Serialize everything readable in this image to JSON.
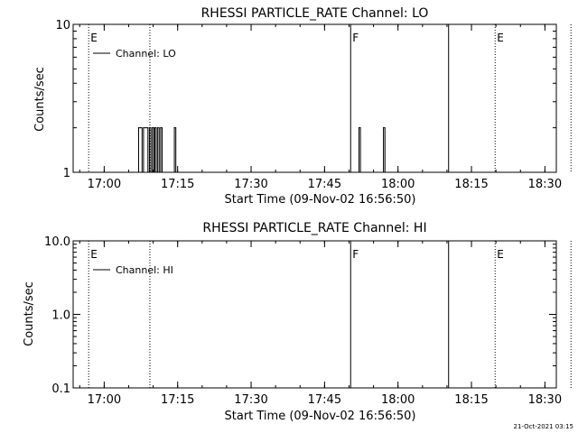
{
  "chart_data": [
    {
      "type": "line",
      "title": "RHESSI PARTICLE_RATE Channel: LO",
      "xlabel": "Start Time (09-Nov-02 16:56:50)",
      "ylabel": "Counts/sec",
      "yscale": "log",
      "ylim": [
        1,
        10
      ],
      "xlim_min": [
        -3.17,
        95.5
      ],
      "xticks": [
        {
          "v": 3.17,
          "label": "17:00"
        },
        {
          "v": 18.17,
          "label": "17:15"
        },
        {
          "v": 33.17,
          "label": "17:30"
        },
        {
          "v": 48.17,
          "label": "17:45"
        },
        {
          "v": 63.17,
          "label": "18:00"
        },
        {
          "v": 78.17,
          "label": "18:15"
        },
        {
          "v": 93.17,
          "label": "18:30"
        }
      ],
      "yticks": [
        {
          "v": 1,
          "label": "1"
        },
        {
          "v": 10,
          "label": "10"
        }
      ],
      "legend": {
        "label": "Channel: LO",
        "placement": "top-left"
      },
      "markers": [
        {
          "x": 0,
          "style": "dotted",
          "label": "E"
        },
        {
          "x": 12.5,
          "style": "dotted",
          "label": ""
        },
        {
          "x": 53.5,
          "style": "solid",
          "label": "F"
        },
        {
          "x": 73.5,
          "style": "solid",
          "label": ""
        },
        {
          "x": 83.0,
          "style": "dotted",
          "label": "E"
        },
        {
          "x": 98.5,
          "style": "dotted",
          "label": ""
        }
      ],
      "series": [
        {
          "x": [
            9.9,
            10.2,
            10.6,
            10.9,
            11.2,
            11.8,
            12.1,
            12.4,
            12.7,
            13.0,
            13.3,
            13.5,
            13.8,
            14.1,
            14.4,
            14.7,
            15.0,
            17.2,
            17.5,
            17.8,
            54.9,
            55.2,
            55.5,
            59.9,
            60.2,
            60.5
          ],
          "values": [
            1,
            2,
            2,
            1,
            2,
            2,
            1,
            2,
            1,
            2,
            1,
            2,
            1,
            2,
            1,
            2,
            1,
            1,
            2,
            1,
            1,
            2,
            1,
            1,
            2,
            1
          ]
        }
      ]
    },
    {
      "type": "line",
      "title": "RHESSI PARTICLE_RATE Channel: HI",
      "xlabel": "Start Time (09-Nov-02 16:56:50)",
      "ylabel": "Counts/sec",
      "yscale": "log",
      "ylim": [
        0.1,
        10
      ],
      "xlim_min": [
        -3.17,
        95.5
      ],
      "xticks": [
        {
          "v": 3.17,
          "label": "17:00"
        },
        {
          "v": 18.17,
          "label": "17:15"
        },
        {
          "v": 33.17,
          "label": "17:30"
        },
        {
          "v": 48.17,
          "label": "17:45"
        },
        {
          "v": 63.17,
          "label": "18:00"
        },
        {
          "v": 78.17,
          "label": "18:15"
        },
        {
          "v": 93.17,
          "label": "18:30"
        }
      ],
      "yticks": [
        {
          "v": 0.1,
          "label": "0.1"
        },
        {
          "v": 1,
          "label": "1.0"
        },
        {
          "v": 10,
          "label": "10.0"
        }
      ],
      "legend": {
        "label": "Channel: HI",
        "placement": "top-left"
      },
      "markers": [
        {
          "x": 0,
          "style": "dotted",
          "label": "E"
        },
        {
          "x": 12.5,
          "style": "dotted",
          "label": ""
        },
        {
          "x": 53.5,
          "style": "solid",
          "label": "F"
        },
        {
          "x": 73.5,
          "style": "solid",
          "label": ""
        },
        {
          "x": 83.0,
          "style": "dotted",
          "label": "E"
        },
        {
          "x": 98.5,
          "style": "dotted",
          "label": ""
        }
      ],
      "series": [
        {
          "x": [],
          "values": []
        }
      ]
    }
  ],
  "footer": {
    "timestamp": "21-Oct-2021 03:15"
  }
}
